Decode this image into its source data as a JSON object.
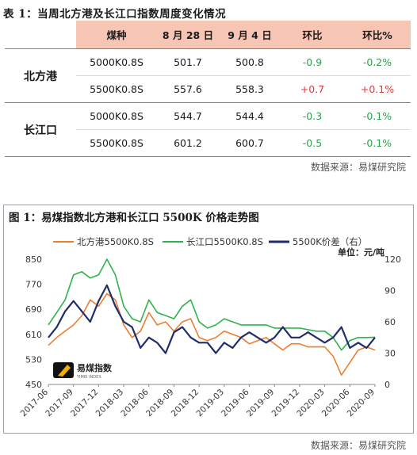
{
  "table": {
    "caption": "表 1：当周北方港及长江口指数周度变化情况",
    "headers": [
      "",
      "煤种",
      "8 月 28 日",
      "9 月 4 日",
      "环比",
      "环比%"
    ],
    "groups": [
      {
        "name": "北方港",
        "rows": [
          {
            "grade": "5000K0.8S",
            "aug28": "501.7",
            "sep4": "500.8",
            "chg": "-0.9",
            "pct": "-0.2%",
            "dir": "down"
          },
          {
            "grade": "5500K0.8S",
            "aug28": "557.6",
            "sep4": "558.3",
            "chg": "+0.7",
            "pct": "+0.1%",
            "dir": "up"
          }
        ]
      },
      {
        "name": "长江口",
        "rows": [
          {
            "grade": "5000K0.8S",
            "aug28": "544.7",
            "sep4": "544.4",
            "chg": "-0.3",
            "pct": "-0.1%",
            "dir": "down"
          },
          {
            "grade": "5500K0.8S",
            "aug28": "601.2",
            "sep4": "600.7",
            "chg": "-0.5",
            "pct": "-0.1%",
            "dir": "down"
          }
        ]
      }
    ],
    "source": "数据来源：易煤研究院"
  },
  "figure": {
    "caption": "图 1：易煤指数北方港和长江口 5500K 价格走势图",
    "unit_label": "单位：元/吨",
    "logo_text": "易煤指数",
    "logo_sub": "YIMEI INDEX",
    "source": "数据来源：易煤研究院",
    "colors": {
      "north": "#ed7d31",
      "yangtze": "#2eb34a",
      "spread": "#1f2d6b"
    }
  },
  "chart_data": {
    "type": "line",
    "series": [
      {
        "name": "北方港5500K0.8S",
        "axis": "left",
        "x": [
          "2017-06",
          "2017-07",
          "2017-08",
          "2017-09",
          "2017-10",
          "2017-11",
          "2017-12",
          "2018-01",
          "2018-02",
          "2018-03",
          "2018-04",
          "2018-05",
          "2018-06",
          "2018-07",
          "2018-08",
          "2018-09",
          "2018-10",
          "2018-11",
          "2018-12",
          "2019-01",
          "2019-02",
          "2019-03",
          "2019-04",
          "2019-05",
          "2019-06",
          "2019-07",
          "2019-08",
          "2019-09",
          "2019-10",
          "2019-11",
          "2019-12",
          "2020-01",
          "2020-02",
          "2020-03",
          "2020-04",
          "2020-05",
          "2020-06",
          "2020-07",
          "2020-08",
          "2020-09"
        ],
        "values": [
          575,
          600,
          620,
          640,
          670,
          720,
          700,
          740,
          720,
          640,
          600,
          620,
          680,
          640,
          650,
          620,
          650,
          660,
          600,
          590,
          600,
          620,
          610,
          600,
          580,
          590,
          600,
          580,
          560,
          580,
          580,
          570,
          570,
          570,
          540,
          480,
          520,
          560,
          570,
          560
        ]
      },
      {
        "name": "长江口5500K0.8S",
        "axis": "left",
        "x": [
          "2017-06",
          "2017-07",
          "2017-08",
          "2017-09",
          "2017-10",
          "2017-11",
          "2017-12",
          "2018-01",
          "2018-02",
          "2018-03",
          "2018-04",
          "2018-05",
          "2018-06",
          "2018-07",
          "2018-08",
          "2018-09",
          "2018-10",
          "2018-11",
          "2018-12",
          "2019-01",
          "2019-02",
          "2019-03",
          "2019-04",
          "2019-05",
          "2019-06",
          "2019-07",
          "2019-08",
          "2019-09",
          "2019-10",
          "2019-11",
          "2019-12",
          "2020-01",
          "2020-02",
          "2020-03",
          "2020-04",
          "2020-05",
          "2020-06",
          "2020-07",
          "2020-08",
          "2020-09"
        ],
        "values": [
          640,
          680,
          720,
          800,
          810,
          790,
          800,
          850,
          800,
          700,
          660,
          650,
          720,
          680,
          670,
          660,
          700,
          720,
          650,
          630,
          640,
          660,
          650,
          640,
          640,
          640,
          640,
          630,
          630,
          630,
          630,
          625,
          620,
          620,
          600,
          560,
          590,
          600,
          600,
          601
        ]
      },
      {
        "name": "5500K价差（右）",
        "axis": "right",
        "x": [
          "2017-06",
          "2017-07",
          "2017-08",
          "2017-09",
          "2017-10",
          "2017-11",
          "2017-12",
          "2018-01",
          "2018-02",
          "2018-03",
          "2018-04",
          "2018-05",
          "2018-06",
          "2018-07",
          "2018-08",
          "2018-09",
          "2018-10",
          "2018-11",
          "2018-12",
          "2019-01",
          "2019-02",
          "2019-03",
          "2019-04",
          "2019-05",
          "2019-06",
          "2019-07",
          "2019-08",
          "2019-09",
          "2019-10",
          "2019-11",
          "2019-12",
          "2020-01",
          "2020-02",
          "2020-03",
          "2020-04",
          "2020-05",
          "2020-06",
          "2020-07",
          "2020-08",
          "2020-09"
        ],
        "values": [
          45,
          55,
          70,
          80,
          70,
          60,
          80,
          95,
          75,
          60,
          55,
          35,
          45,
          40,
          30,
          50,
          55,
          45,
          40,
          40,
          30,
          40,
          35,
          45,
          50,
          45,
          40,
          45,
          55,
          45,
          45,
          50,
          45,
          40,
          45,
          55,
          35,
          40,
          35,
          45
        ]
      }
    ],
    "y_left": {
      "min": 450,
      "max": 850,
      "ticks": [
        450,
        530,
        610,
        690,
        770,
        850
      ]
    },
    "y_right": {
      "min": 0,
      "max": 120,
      "ticks": [
        0,
        30,
        60,
        90,
        120
      ]
    },
    "x_ticks": [
      "2017-06",
      "2017-09",
      "2017-12",
      "2018-03",
      "2018-06",
      "2018-09",
      "2018-12",
      "2019-03",
      "2019-06",
      "2019-09",
      "2019-12",
      "2020-03",
      "2020-06",
      "2020-09"
    ],
    "legend_position": "top",
    "grid": false
  }
}
